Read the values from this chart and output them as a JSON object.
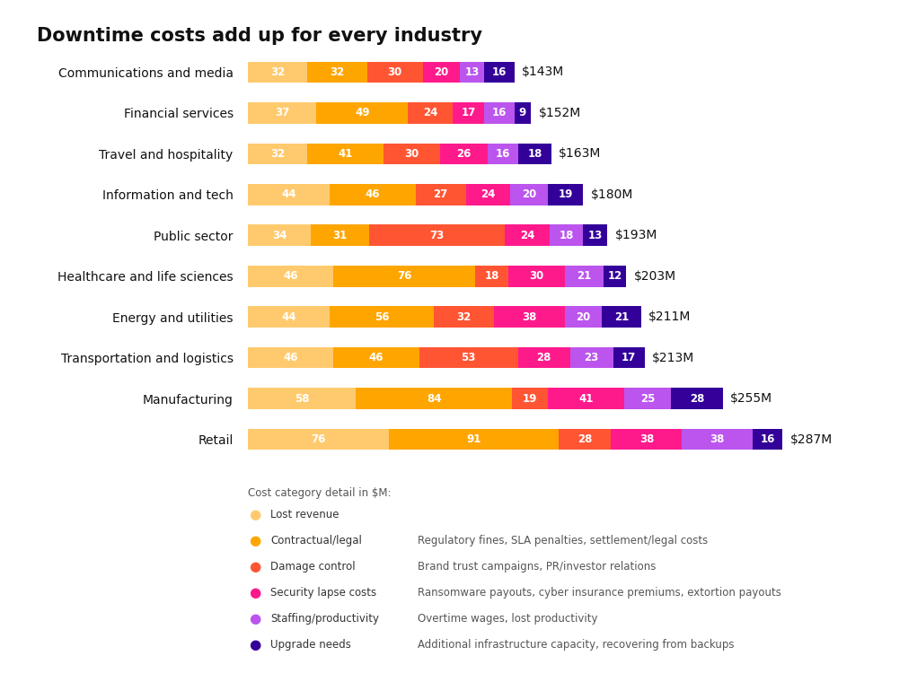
{
  "title": "Downtime costs add up for every industry",
  "industries": [
    "Communications and media",
    "Financial services",
    "Travel and hospitality",
    "Information and tech",
    "Public sector",
    "Healthcare and life sciences",
    "Energy and utilities",
    "Transportation and logistics",
    "Manufacturing",
    "Retail"
  ],
  "totals": [
    "$143M",
    "$152M",
    "$163M",
    "$180M",
    "$193M",
    "$203M",
    "$211M",
    "$213M",
    "$255M",
    "$287M"
  ],
  "data": [
    [
      32,
      32,
      30,
      20,
      13,
      16
    ],
    [
      37,
      49,
      24,
      17,
      16,
      9
    ],
    [
      32,
      41,
      30,
      26,
      16,
      18
    ],
    [
      44,
      46,
      27,
      24,
      20,
      19
    ],
    [
      34,
      31,
      73,
      24,
      18,
      13
    ],
    [
      46,
      76,
      18,
      30,
      21,
      12
    ],
    [
      44,
      56,
      32,
      38,
      20,
      21
    ],
    [
      46,
      46,
      53,
      28,
      23,
      17
    ],
    [
      58,
      84,
      19,
      41,
      25,
      28
    ],
    [
      76,
      91,
      28,
      38,
      38,
      16
    ]
  ],
  "colors": [
    "#FFCA6E",
    "#FFA500",
    "#FF5533",
    "#FF1A8C",
    "#BB55EE",
    "#330099"
  ],
  "legend_labels": [
    "Lost revenue",
    "Contractual/legal",
    "Damage control",
    "Security lapse costs",
    "Staffing/productivity",
    "Upgrade needs"
  ],
  "legend_descriptions": [
    "",
    "Regulatory fines, SLA penalties, settlement/legal costs",
    "Brand trust campaigns, PR/investor relations",
    "Ransomware payouts, cyber insurance premiums, extortion payouts",
    "Overtime wages, lost productivity",
    "Additional infrastructure capacity, recovering from backups"
  ],
  "legend_note": "Cost category detail in $M:",
  "background_color": "#FFFFFF",
  "bar_height": 0.52,
  "xlim": 300,
  "label_fontsize": 10,
  "bar_fontsize": 8.5,
  "title_fontsize": 15
}
